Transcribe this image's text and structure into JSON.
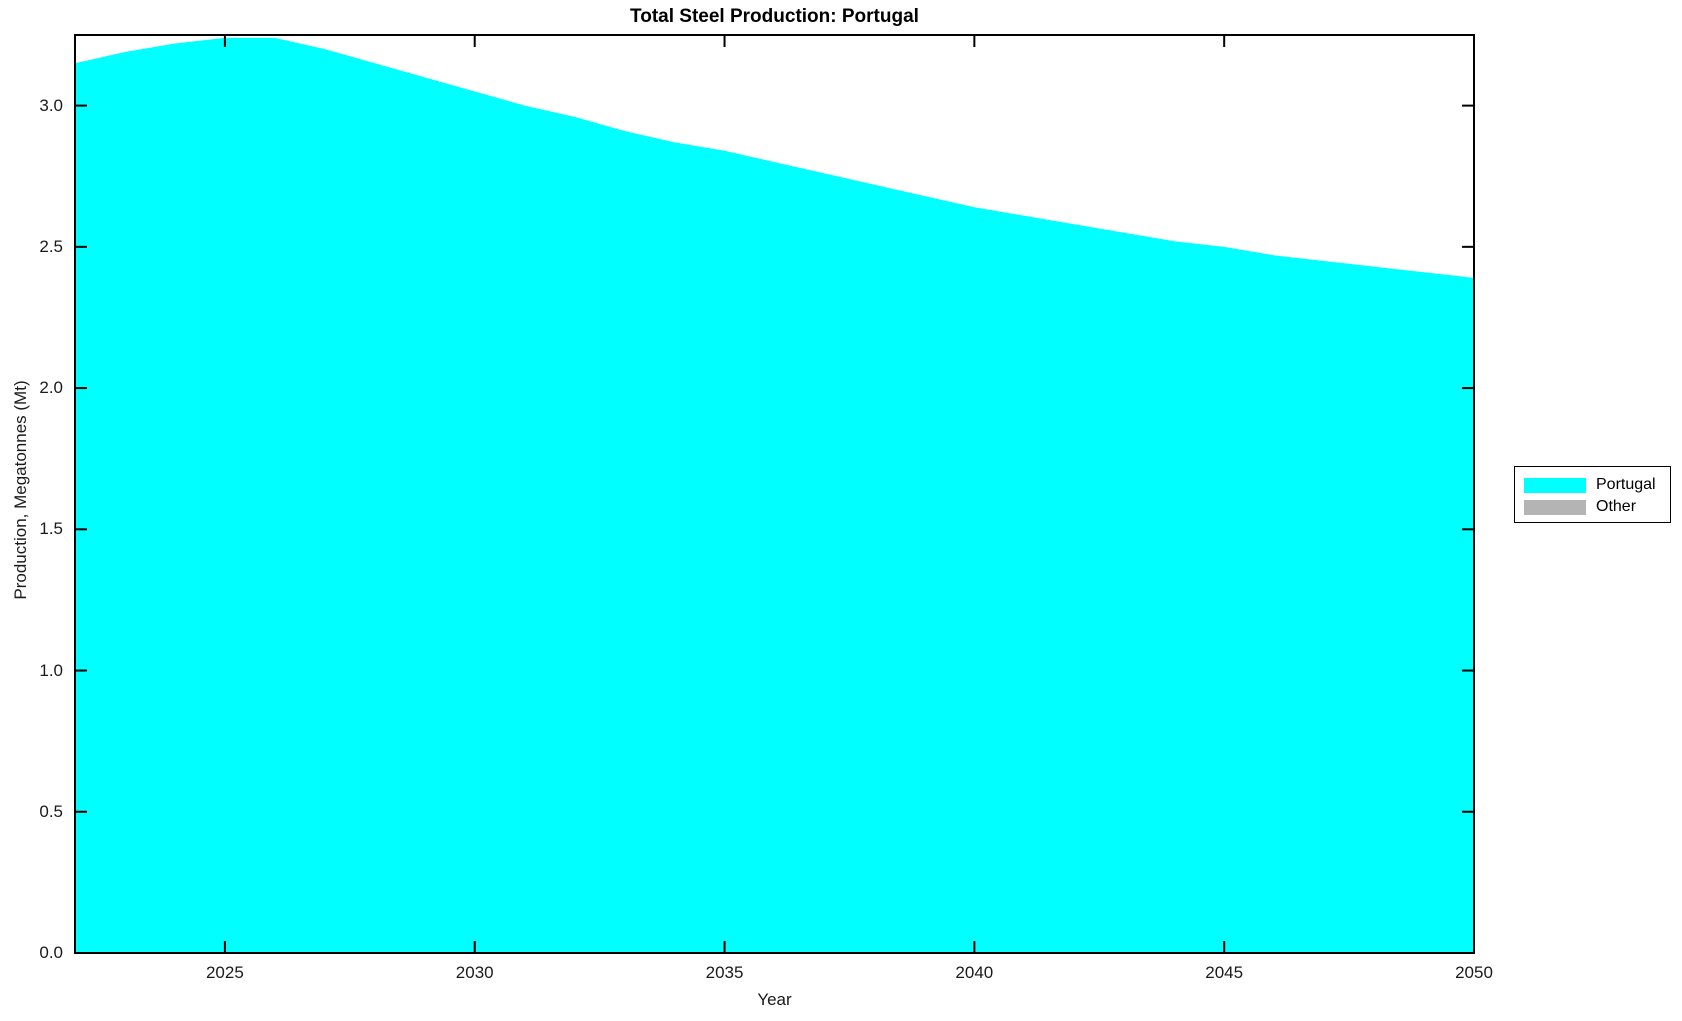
{
  "page": {
    "background": "#ffffff"
  },
  "chart_data": {
    "type": "area",
    "stacked": true,
    "title": "Total Steel Production: Portugal",
    "xlabel": "Year",
    "ylabel": "Production, Megatonnes (Mt)",
    "xlim": [
      2022,
      2050
    ],
    "ylim": [
      0,
      3.25
    ],
    "grid": false,
    "axis_color": "#000000",
    "xticks": [
      2025,
      2030,
      2035,
      2040,
      2045,
      2050
    ],
    "xtick_labels": [
      "2025",
      "2030",
      "2035",
      "2040",
      "2045",
      "2050"
    ],
    "yticks": [
      0,
      0.5,
      1,
      1.5,
      2,
      2.5,
      3
    ],
    "ytick_labels": [
      "0.0",
      "0.5",
      "1.0",
      "1.5",
      "2.0",
      "2.5",
      "3.0"
    ],
    "x": [
      2022,
      2023,
      2024,
      2025,
      2026,
      2027,
      2028,
      2029,
      2030,
      2031,
      2032,
      2033,
      2034,
      2035,
      2036,
      2037,
      2038,
      2039,
      2040,
      2041,
      2042,
      2043,
      2044,
      2045,
      2046,
      2047,
      2048,
      2049,
      2050
    ],
    "series": [
      {
        "name": "Portugal",
        "color": "#00ffff",
        "values": [
          3.15,
          3.19,
          3.22,
          3.24,
          3.24,
          3.2,
          3.15,
          3.1,
          3.05,
          3.0,
          2.96,
          2.91,
          2.87,
          2.84,
          2.8,
          2.76,
          2.72,
          2.68,
          2.64,
          2.61,
          2.58,
          2.55,
          2.52,
          2.5,
          2.47,
          2.45,
          2.43,
          2.41,
          2.39
        ]
      },
      {
        "name": "Other",
        "color": "#b4b4b4",
        "values": [
          0,
          0,
          0,
          0,
          0,
          0,
          0,
          0,
          0,
          0,
          0,
          0,
          0,
          0,
          0,
          0,
          0,
          0,
          0,
          0,
          0,
          0,
          0,
          0,
          0,
          0,
          0,
          0,
          0
        ]
      }
    ],
    "legend": {
      "position": "outside-right",
      "entries": [
        "Portugal",
        "Other"
      ]
    }
  }
}
